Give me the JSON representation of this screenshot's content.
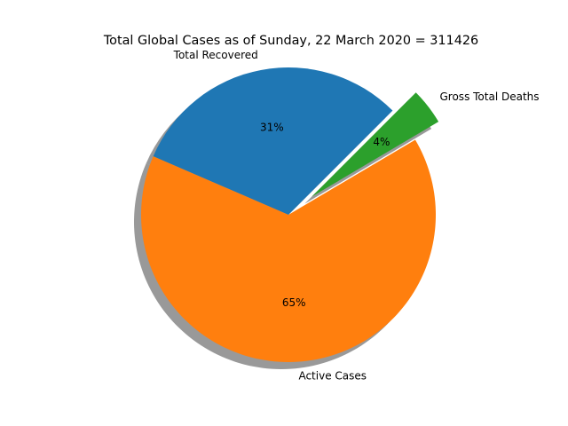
{
  "chart_data": {
    "type": "pie",
    "title": "Total Global Cases as of Sunday, 22 March 2020 = 311426",
    "shadow": true,
    "start_angle_deg": 45,
    "direction": "counterclockwise",
    "slices": [
      {
        "label": "Total Recovered",
        "percent_label": "31%",
        "value": 31,
        "color": "#1f77b4",
        "exploded": false
      },
      {
        "label": "Active Cases",
        "percent_label": "65%",
        "value": 65,
        "color": "#ff7f0e",
        "exploded": false
      },
      {
        "label": "Gross Total Deaths",
        "percent_label": "4%",
        "value": 4,
        "color": "#2ca02c",
        "exploded": true
      }
    ]
  }
}
